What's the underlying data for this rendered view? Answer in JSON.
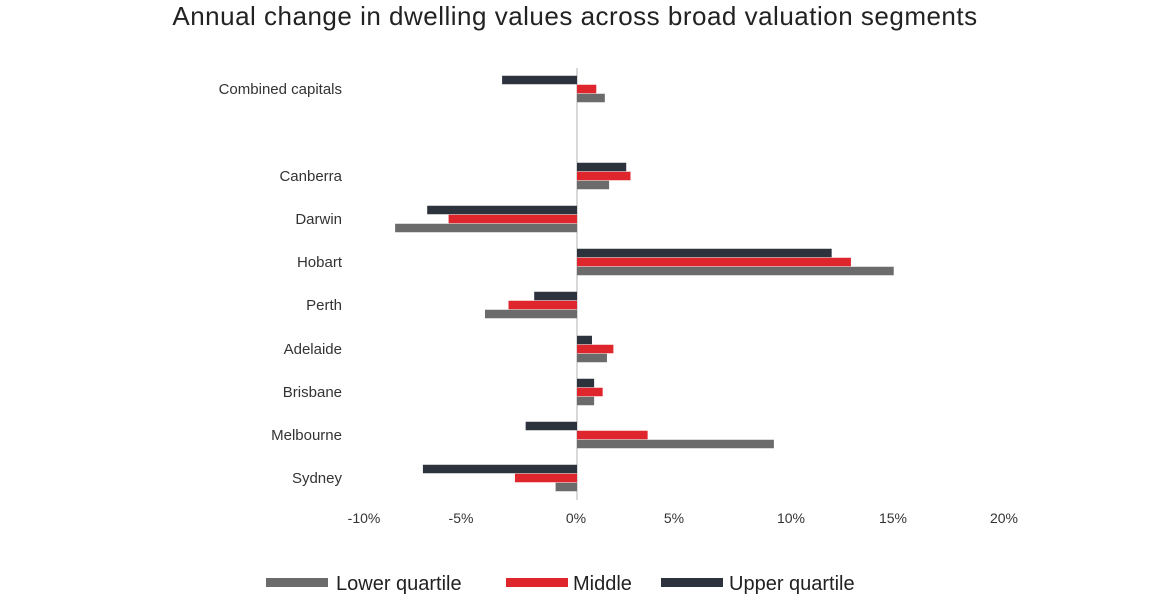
{
  "chart_data": {
    "type": "bar",
    "orientation": "horizontal",
    "title": "Annual change in dwelling values across broad valuation segments",
    "xlabel": "",
    "ylabel": "",
    "xlim": [
      -10,
      20
    ],
    "x_ticks": [
      -10,
      -5,
      0,
      5,
      10,
      15,
      20
    ],
    "x_tick_labels": [
      "-10%",
      "-5%",
      "0%",
      "5%",
      "10%",
      "15%",
      "20%"
    ],
    "categories": [
      "Combined capitals",
      "Canberra",
      "Darwin",
      "Hobart",
      "Perth",
      "Adelaide",
      "Brisbane",
      "Melbourne",
      "Sydney"
    ],
    "series": [
      {
        "name": "Upper quartile",
        "color": "#2d333d",
        "values": [
          -3.5,
          2.3,
          -7.0,
          11.9,
          -2.0,
          0.7,
          0.8,
          -2.4,
          -7.2
        ]
      },
      {
        "name": "Middle",
        "color": "#e0262d",
        "values": [
          0.9,
          2.5,
          -6.0,
          12.8,
          -3.2,
          1.7,
          1.2,
          3.3,
          -2.9
        ]
      },
      {
        "name": "Lower quartile",
        "color": "#6b6b6b",
        "values": [
          1.3,
          1.5,
          -8.5,
          14.8,
          -4.3,
          1.4,
          0.8,
          9.2,
          -1.0
        ]
      }
    ],
    "legend": {
      "position": "bottom",
      "order": [
        "Lower quartile",
        "Middle",
        "Upper quartile"
      ]
    },
    "grid": false,
    "zero_line_color": "#cccccc"
  }
}
